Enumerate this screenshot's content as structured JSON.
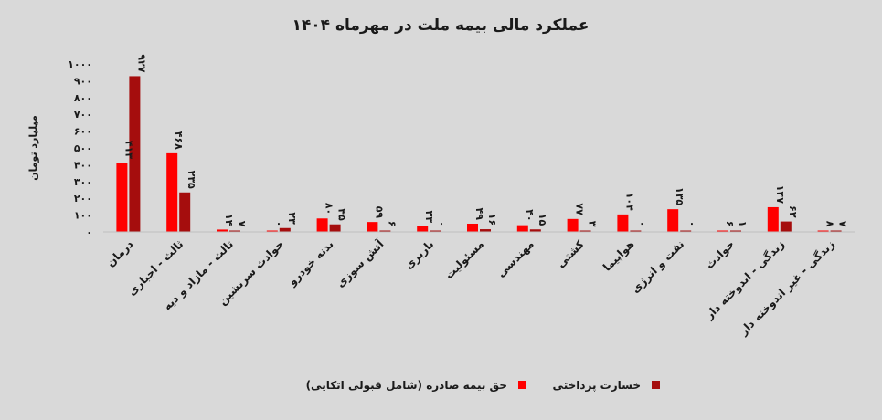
{
  "chart_data": {
    "type": "bar",
    "title": "عملکرد مالی بیمه ملت در مهرماه ۱۴۰۴",
    "ylabel": "میلیارد تومان",
    "xlabel": "",
    "ylim": [
      0,
      1000
    ],
    "yticks": [
      {
        "value": 0,
        "label": "۰"
      },
      {
        "value": 100,
        "label": "۱۰۰"
      },
      {
        "value": 200,
        "label": "۲۰۰"
      },
      {
        "value": 300,
        "label": "۳۰۰"
      },
      {
        "value": 400,
        "label": "۴۰۰"
      },
      {
        "value": 500,
        "label": "۵۰۰"
      },
      {
        "value": 600,
        "label": "۶۰۰"
      },
      {
        "value": 700,
        "label": "۷۰۰"
      },
      {
        "value": 800,
        "label": "۸۰۰"
      },
      {
        "value": 900,
        "label": "۹۰۰"
      },
      {
        "value": 1000,
        "label": "۱۰۰۰"
      }
    ],
    "grid": false,
    "legend_position": "bottom",
    "categories": [
      "درمان",
      "ثالث - اجباری",
      "ثالث - مازاد و دیه",
      "حوادث سرنشین",
      "بدنه خودرو",
      "آتش سوزی",
      "باربری",
      "مسئولیت",
      "مهندسی",
      "کشتی",
      "هواپیما",
      "نفت و انرژی",
      "حوادث",
      "زندگی - اندوخته دار",
      "زندگی - غیر اندوخته دار"
    ],
    "series": [
      {
        "name": "حق بیمه صادره (شامل قبولی اتکایی)",
        "color": "#ff0000",
        "values": [
          413,
          468,
          14,
          0,
          80,
          59,
          33,
          49,
          40,
          77,
          104,
          135,
          6,
          147,
          8
        ],
        "labels": [
          "۴۱۳",
          "۴۶۸",
          "۱۴",
          "۰",
          "۸۰",
          "۵۹",
          "۳۳",
          "۴۹",
          "۴۰",
          "۷۷",
          "۱۰۴",
          "۱۳۵",
          "۶",
          "۱۴۷",
          "۸"
        ]
      },
      {
        "name": "خسارت پرداختی",
        "color": "#a50d0d",
        "values": [
          927,
          235,
          7,
          23,
          45,
          6,
          0,
          16,
          15,
          3,
          0,
          0,
          1,
          62,
          7
        ],
        "labels": [
          "۹۲۷",
          "۲۳۵",
          "۷",
          "۲۳",
          "۴۵",
          "۶",
          "۰",
          "۱۶",
          "۱۵",
          "۳",
          "۰",
          "۰",
          "۱",
          "۶۲",
          "۷"
        ]
      }
    ]
  }
}
